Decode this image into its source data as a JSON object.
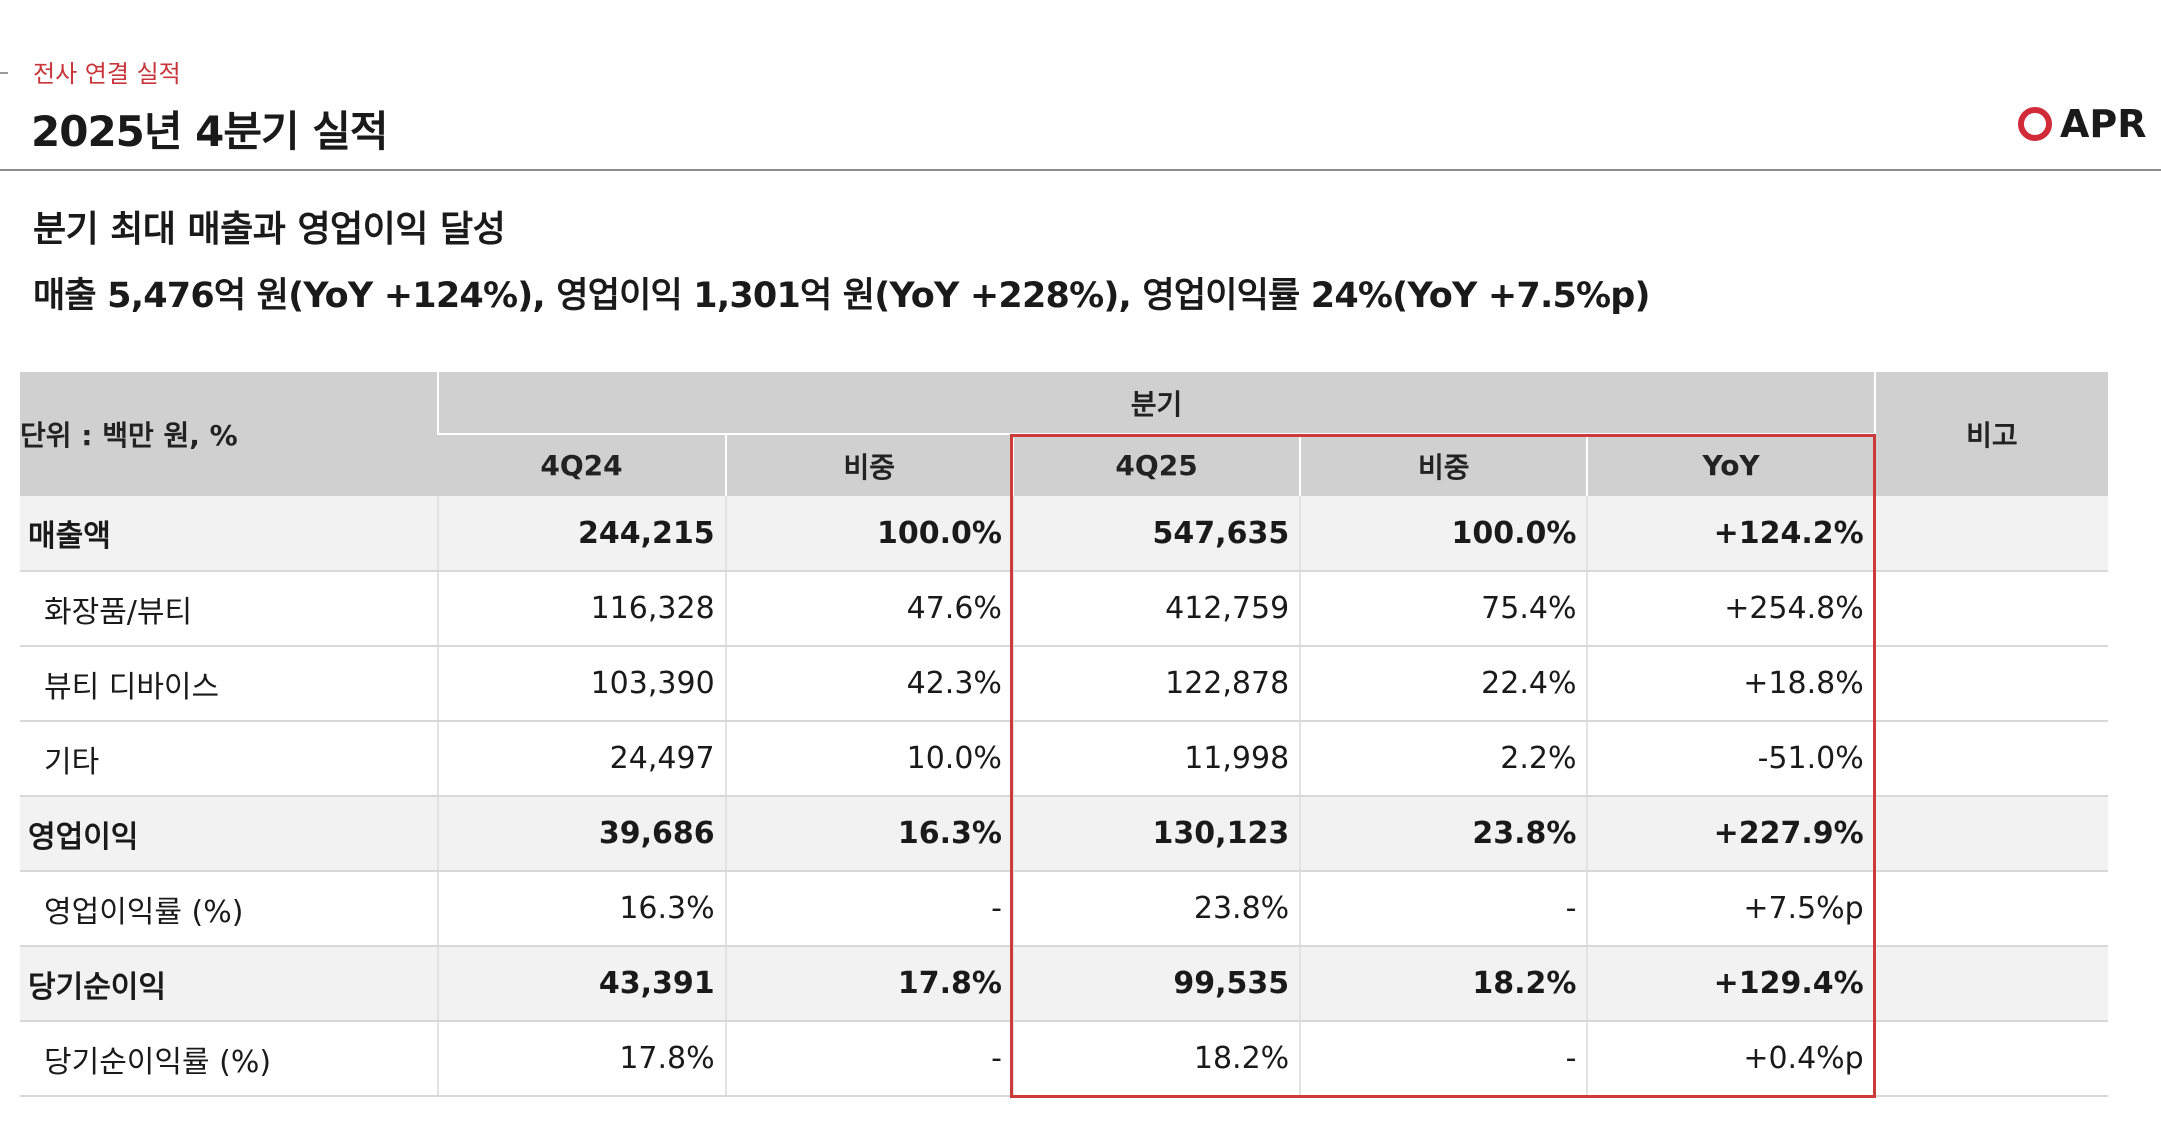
{
  "header": {
    "section_label": "전사 연결 실적",
    "title": "2025년 4분기 실적",
    "logo_text": "APR"
  },
  "summary": {
    "headline": "분기 최대 매출과 영업이익 달성",
    "detail": "매출 5,476억 원(YoY +124%), 영업이익 1,301억 원(YoY +228%), 영업이익률 24%(YoY +7.5%p)"
  },
  "table": {
    "unit_label": "단위 : 백만 원, %",
    "group_header": "분기",
    "note_header": "비고",
    "columns": [
      "4Q24",
      "비중",
      "4Q25",
      "비중",
      "YoY"
    ],
    "rows": [
      {
        "label": "매출액",
        "values": [
          "244,215",
          "100.0%",
          "547,635",
          "100.0%",
          "+124.2%"
        ],
        "note": ""
      },
      {
        "label": "화장품/뷰티",
        "values": [
          "116,328",
          "47.6%",
          "412,759",
          "75.4%",
          "+254.8%"
        ],
        "note": ""
      },
      {
        "label": "뷰티 디바이스",
        "values": [
          "103,390",
          "42.3%",
          "122,878",
          "22.4%",
          "+18.8%"
        ],
        "note": ""
      },
      {
        "label": "기타",
        "values": [
          "24,497",
          "10.0%",
          "11,998",
          "2.2%",
          "-51.0%"
        ],
        "note": ""
      },
      {
        "label": "영업이익",
        "values": [
          "39,686",
          "16.3%",
          "130,123",
          "23.8%",
          "+227.9%"
        ],
        "note": ""
      },
      {
        "label": "영업이익률 (%)",
        "values": [
          "16.3%",
          "-",
          "23.8%",
          "-",
          "+7.5%p"
        ],
        "note": ""
      },
      {
        "label": "당기순이익",
        "values": [
          "43,391",
          "17.8%",
          "99,535",
          "18.2%",
          "+129.4%"
        ],
        "note": ""
      },
      {
        "label": "당기순이익률 (%)",
        "values": [
          "17.8%",
          "-",
          "18.2%",
          "-",
          "+0.4%p"
        ],
        "note": ""
      }
    ]
  },
  "colors": {
    "accent_red": "#cc3a3a",
    "header_gray": "#d0d0d0",
    "row_highlight": "#f2f2f2"
  }
}
